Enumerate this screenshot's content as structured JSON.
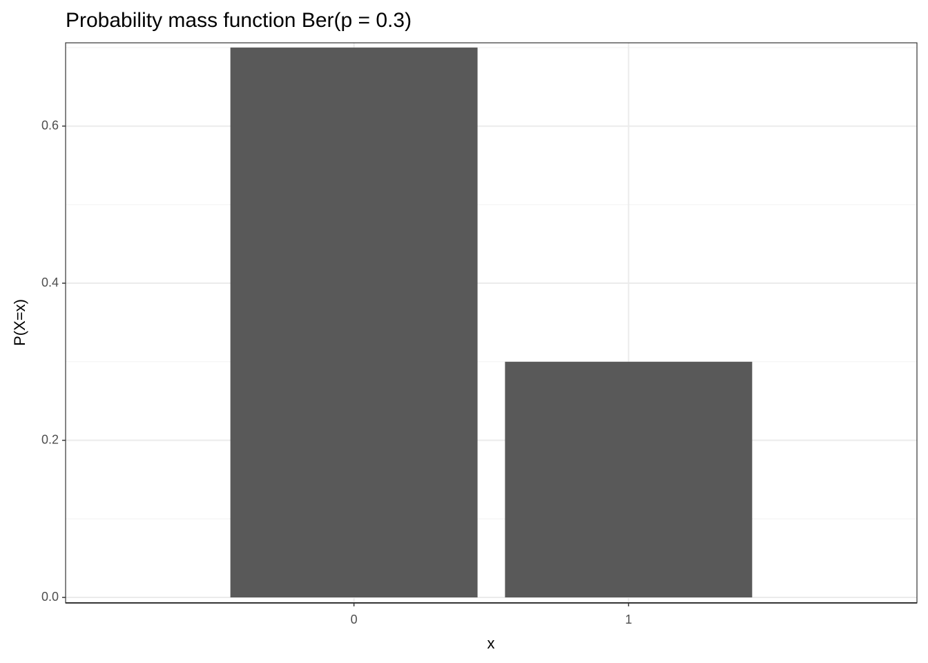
{
  "chart_data": {
    "type": "bar",
    "title": "Probability mass function Ber(p = 0.3)",
    "x_label": "x",
    "y_label": "P(X=x)",
    "x": [
      0,
      1
    ],
    "values": [
      0.7,
      0.3
    ],
    "color": "#595959",
    "xlim": [
      -1.05,
      2.05
    ],
    "xticks": [
      0,
      1
    ],
    "ylim": [
      -0.007,
      0.706
    ],
    "yticks": [
      {
        "value": 0,
        "label": "0.0"
      },
      0.2,
      0.4,
      0.6
    ],
    "yminorticks": [
      0.1,
      0.3,
      0.5,
      0.7
    ],
    "grid": true
  }
}
